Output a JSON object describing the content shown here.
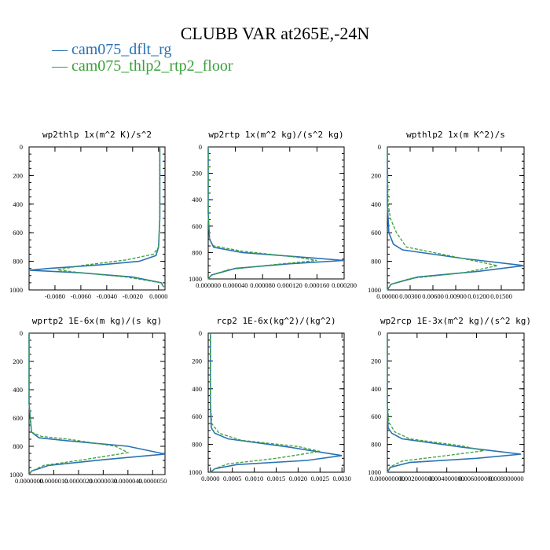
{
  "figure": {
    "title": "CLUBB VAR at265E,-24N",
    "legend": [
      {
        "label": "cam075_dflt_rg",
        "color": "#2a72b4"
      },
      {
        "label": "cam075_thlp2_rtp2_floor",
        "color": "#3aa13a"
      }
    ]
  },
  "chart_data": [
    {
      "type": "line",
      "title": "wp2thlp  1x(m^2 K)/s^2",
      "xlim": [
        -0.01,
        0.0005
      ],
      "ylim": [
        1000,
        0
      ],
      "xticks": [
        -0.008,
        -0.006,
        -0.004,
        -0.002,
        0.0
      ],
      "xticklabels": [
        "-0.0080",
        "-0.0060",
        "-0.0040",
        "-0.0020",
        "0.0000"
      ],
      "yticks": [
        0,
        200,
        400,
        600,
        800,
        1000
      ],
      "series": [
        {
          "name": "cam075_dflt_rg",
          "x": [
            0.0001,
            0.0001,
            0.0001,
            0.0,
            -0.0002,
            -0.0015,
            -0.0045,
            -0.0085,
            -0.01,
            -0.006,
            -0.002,
            0.0002,
            0.0004
          ],
          "y": [
            0,
            200,
            500,
            700,
            760,
            800,
            825,
            850,
            862,
            880,
            910,
            950,
            980
          ]
        },
        {
          "name": "cam075_thlp2_rtp2_floor",
          "x": [
            0.0001,
            0.0001,
            0.0001,
            0.0,
            -0.0004,
            -0.0025,
            -0.006,
            -0.0078,
            -0.006,
            -0.0025,
            0.0002,
            0.0004
          ],
          "y": [
            0,
            200,
            500,
            700,
            750,
            790,
            830,
            860,
            880,
            910,
            950,
            980
          ]
        }
      ]
    },
    {
      "type": "line",
      "title": "wp2rtp  1x(m^2 kg)/(s^2 kg)",
      "xlim": [
        0,
        0.0002
      ],
      "ylim": [
        1000,
        0
      ],
      "xticks": [
        0,
        4e-05,
        8e-05,
        0.00012,
        0.00016,
        0.0002
      ],
      "xticklabels": [
        "0.000000",
        "0.000040",
        "0.000080",
        "0.000120",
        "0.000160",
        "0.000200"
      ],
      "yticks": [
        0,
        200,
        400,
        600,
        800,
        1000
      ],
      "series": [
        {
          "name": "cam075_dflt_rg",
          "x": [
            0,
            0,
            2e-06,
            8e-06,
            5e-05,
            0.00015,
            0.0002,
            0.00012,
            4e-05,
            5e-06,
            0
          ],
          "y": [
            0,
            500,
            700,
            760,
            800,
            840,
            860,
            885,
            920,
            970,
            1000
          ]
        },
        {
          "name": "cam075_thlp2_rtp2_floor",
          "x": [
            0,
            0,
            2e-06,
            8e-06,
            5e-05,
            0.00013,
            0.00016,
            0.0001,
            3e-05,
            5e-06,
            0
          ],
          "y": [
            0,
            500,
            700,
            750,
            790,
            835,
            860,
            890,
            930,
            970,
            1000
          ]
        }
      ]
    },
    {
      "type": "line",
      "title": "wpthlp2  1x(m K^2)/s",
      "xlim": [
        0,
        0.018
      ],
      "ylim": [
        1000,
        0
      ],
      "xticks": [
        0,
        0.003,
        0.006,
        0.009,
        0.012,
        0.015
      ],
      "xticklabels": [
        "0.00000",
        "0.00300",
        "0.00600",
        "0.00900",
        "0.01200",
        "0.01500"
      ],
      "yticks": [
        0,
        200,
        400,
        600,
        800,
        1000
      ],
      "series": [
        {
          "name": "cam075_dflt_rg",
          "x": [
            0,
            0,
            0.0002,
            0.0008,
            0.002,
            0.01,
            0.018,
            0.012,
            0.004,
            0.0005,
            0
          ],
          "y": [
            0,
            400,
            600,
            680,
            720,
            780,
            830,
            870,
            910,
            960,
            1000
          ]
        },
        {
          "name": "cam075_thlp2_rtp2_floor",
          "x": [
            0,
            0.0001,
            0.0004,
            0.0012,
            0.0025,
            0.009,
            0.0145,
            0.01,
            0.003,
            0.0005,
            0
          ],
          "y": [
            0,
            400,
            500,
            600,
            700,
            770,
            830,
            880,
            920,
            960,
            1000
          ]
        }
      ]
    },
    {
      "type": "line",
      "title": "wprtp2  1E-6x(m kg)/(s kg)",
      "xlim": [
        0,
        5.5e-06
      ],
      "ylim": [
        1000,
        0
      ],
      "xticks": [
        0,
        1e-06,
        2e-06,
        3e-06,
        4e-06,
        5e-06
      ],
      "xticklabels": [
        "0.0000000",
        "0.0000010",
        "0.0000020",
        "0.0000030",
        "0.0000040",
        "0.0000050"
      ],
      "yticks": [
        0,
        200,
        400,
        600,
        800,
        1000
      ],
      "series": [
        {
          "name": "cam075_dflt_rg",
          "x": [
            0,
            0,
            1e-07,
            4e-07,
            1.5e-06,
            4e-06,
            5.5e-06,
            3e-06,
            8e-07,
            1e-07,
            0
          ],
          "y": [
            0,
            500,
            700,
            740,
            760,
            800,
            855,
            895,
            935,
            975,
            1000
          ]
        },
        {
          "name": "cam075_thlp2_rtp2_floor",
          "x": [
            0,
            0,
            1e-07,
            5e-07,
            1.6e-06,
            3.5e-06,
            4e-06,
            2.2e-06,
            6e-07,
            1e-07,
            0
          ],
          "y": [
            0,
            500,
            700,
            730,
            750,
            800,
            845,
            895,
            935,
            975,
            1000
          ]
        }
      ]
    },
    {
      "type": "line",
      "title": "rcp2  1E-6x(kg^2)/(kg^2)",
      "xlim": [
        -5e-05,
        0.00305
      ],
      "ylim": [
        1000,
        0
      ],
      "xticks": [
        0,
        0.0005,
        0.001,
        0.0015,
        0.002,
        0.0025,
        0.003
      ],
      "xticklabels": [
        "0.0000",
        "0.0005",
        "0.0010",
        "0.0015",
        "0.0020",
        "0.0025",
        "0.0030"
      ],
      "yticks": [
        0,
        200,
        400,
        600,
        800,
        1000
      ],
      "series": [
        {
          "name": "cam075_dflt_rg",
          "x": [
            0,
            0,
            2e-05,
            0.0001,
            0.0004,
            0.0018,
            0.003,
            0.0022,
            0.0006,
            0.0001,
            0
          ],
          "y": [
            0,
            500,
            680,
            720,
            760,
            820,
            880,
            915,
            945,
            975,
            1000
          ]
        },
        {
          "name": "cam075_thlp2_rtp2_floor",
          "x": [
            0,
            0,
            3e-05,
            0.0002,
            0.0007,
            0.002,
            0.0025,
            0.0015,
            0.0004,
            0.0001,
            0
          ],
          "y": [
            0,
            500,
            650,
            720,
            770,
            815,
            850,
            900,
            940,
            975,
            1000
          ]
        }
      ]
    },
    {
      "type": "line",
      "title": "wp2rcp  1E-3x(m^2 kg)/(s^2 kg)",
      "xlim": [
        0,
        0.0092
      ],
      "ylim": [
        1000,
        0
      ],
      "xticks": [
        0,
        0.002,
        0.004,
        0.006,
        0.008
      ],
      "xticklabels": [
        "0.000000000",
        "0.002000000",
        "0.004000000",
        "0.006000000",
        "0.008000000"
      ],
      "yticks": [
        0,
        200,
        400,
        600,
        800,
        1000
      ],
      "series": [
        {
          "name": "cam075_dflt_rg",
          "x": [
            0,
            0,
            5e-05,
            0.0003,
            0.001,
            0.005,
            0.009,
            0.006,
            0.0015,
            0.0002,
            0
          ],
          "y": [
            0,
            500,
            680,
            720,
            760,
            820,
            870,
            900,
            930,
            965,
            1000
          ]
        },
        {
          "name": "cam075_thlp2_rtp2_floor",
          "x": [
            0,
            0,
            0.0001,
            0.0005,
            0.0015,
            0.005,
            0.0065,
            0.004,
            0.001,
            0.0002,
            0
          ],
          "y": [
            0,
            500,
            640,
            710,
            760,
            810,
            845,
            880,
            920,
            960,
            1000
          ]
        }
      ]
    }
  ]
}
